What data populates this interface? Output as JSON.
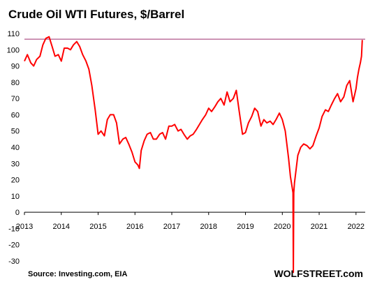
{
  "chart_data": {
    "type": "line",
    "title": "Crude Oil WTI Futures, $/Barrel",
    "xlabel": "",
    "ylabel": "",
    "ylim": [
      -30,
      110
    ],
    "xlim": [
      2013,
      2022.25
    ],
    "yticks": [
      110,
      100,
      90,
      80,
      70,
      60,
      50,
      40,
      30,
      20,
      10,
      0,
      -10,
      -20,
      -30
    ],
    "xticks": [
      "2013",
      "2014",
      "2015",
      "2016",
      "2017",
      "2018",
      "2019",
      "2020",
      "2021",
      "2022"
    ],
    "reference_line": {
      "y": 106.5,
      "color": "#9c2a6b"
    },
    "series": [
      {
        "color": "#ff0000",
        "points": [
          [
            2013.0,
            93
          ],
          [
            2013.08,
            97
          ],
          [
            2013.17,
            92
          ],
          [
            2013.25,
            90
          ],
          [
            2013.33,
            94
          ],
          [
            2013.42,
            96
          ],
          [
            2013.5,
            103
          ],
          [
            2013.58,
            107
          ],
          [
            2013.67,
            108
          ],
          [
            2013.75,
            102
          ],
          [
            2013.83,
            96
          ],
          [
            2013.92,
            97
          ],
          [
            2014.0,
            93
          ],
          [
            2014.08,
            101
          ],
          [
            2014.17,
            101
          ],
          [
            2014.25,
            100
          ],
          [
            2014.33,
            103
          ],
          [
            2014.42,
            105
          ],
          [
            2014.5,
            102
          ],
          [
            2014.58,
            97
          ],
          [
            2014.67,
            93
          ],
          [
            2014.75,
            88
          ],
          [
            2014.83,
            78
          ],
          [
            2014.92,
            63
          ],
          [
            2015.0,
            48
          ],
          [
            2015.08,
            50
          ],
          [
            2015.17,
            47
          ],
          [
            2015.25,
            57
          ],
          [
            2015.33,
            60
          ],
          [
            2015.42,
            60
          ],
          [
            2015.5,
            55
          ],
          [
            2015.58,
            42
          ],
          [
            2015.67,
            45
          ],
          [
            2015.75,
            46
          ],
          [
            2015.83,
            42
          ],
          [
            2015.92,
            37
          ],
          [
            2016.0,
            31
          ],
          [
            2016.08,
            29
          ],
          [
            2016.12,
            27
          ],
          [
            2016.17,
            38
          ],
          [
            2016.25,
            44
          ],
          [
            2016.33,
            48
          ],
          [
            2016.42,
            49
          ],
          [
            2016.5,
            45
          ],
          [
            2016.58,
            45
          ],
          [
            2016.67,
            48
          ],
          [
            2016.75,
            49
          ],
          [
            2016.83,
            45
          ],
          [
            2016.92,
            53
          ],
          [
            2017.0,
            53
          ],
          [
            2017.08,
            54
          ],
          [
            2017.17,
            50
          ],
          [
            2017.25,
            51
          ],
          [
            2017.33,
            48
          ],
          [
            2017.42,
            45
          ],
          [
            2017.5,
            47
          ],
          [
            2017.58,
            48
          ],
          [
            2017.67,
            51
          ],
          [
            2017.75,
            54
          ],
          [
            2017.83,
            57
          ],
          [
            2017.92,
            60
          ],
          [
            2018.0,
            64
          ],
          [
            2018.08,
            62
          ],
          [
            2018.17,
            65
          ],
          [
            2018.25,
            68
          ],
          [
            2018.33,
            70
          ],
          [
            2018.42,
            66
          ],
          [
            2018.5,
            74
          ],
          [
            2018.58,
            68
          ],
          [
            2018.67,
            70
          ],
          [
            2018.75,
            75
          ],
          [
            2018.83,
            62
          ],
          [
            2018.92,
            48
          ],
          [
            2019.0,
            49
          ],
          [
            2019.08,
            55
          ],
          [
            2019.17,
            59
          ],
          [
            2019.25,
            64
          ],
          [
            2019.33,
            62
          ],
          [
            2019.42,
            53
          ],
          [
            2019.5,
            57
          ],
          [
            2019.58,
            55
          ],
          [
            2019.67,
            56
          ],
          [
            2019.75,
            54
          ],
          [
            2019.83,
            57
          ],
          [
            2019.92,
            61
          ],
          [
            2020.0,
            57
          ],
          [
            2020.08,
            50
          ],
          [
            2020.17,
            33
          ],
          [
            2020.22,
            22
          ],
          [
            2020.27,
            15
          ],
          [
            2020.29,
            12
          ],
          [
            2020.3,
            -37
          ],
          [
            2020.31,
            12
          ],
          [
            2020.33,
            18
          ],
          [
            2020.42,
            35
          ],
          [
            2020.5,
            40
          ],
          [
            2020.58,
            42
          ],
          [
            2020.67,
            41
          ],
          [
            2020.75,
            39
          ],
          [
            2020.83,
            41
          ],
          [
            2020.92,
            47
          ],
          [
            2021.0,
            52
          ],
          [
            2021.08,
            59
          ],
          [
            2021.17,
            63
          ],
          [
            2021.25,
            62
          ],
          [
            2021.33,
            66
          ],
          [
            2021.42,
            70
          ],
          [
            2021.5,
            73
          ],
          [
            2021.58,
            68
          ],
          [
            2021.67,
            71
          ],
          [
            2021.75,
            78
          ],
          [
            2021.83,
            81
          ],
          [
            2021.92,
            68
          ],
          [
            2022.0,
            76
          ],
          [
            2022.04,
            83
          ],
          [
            2022.08,
            88
          ],
          [
            2022.12,
            92
          ],
          [
            2022.15,
            96
          ],
          [
            2022.17,
            106
          ]
        ]
      }
    ]
  },
  "footer": {
    "source": "Source: Investing.com,   EIA",
    "brand": "WOLFSTREET.com"
  }
}
